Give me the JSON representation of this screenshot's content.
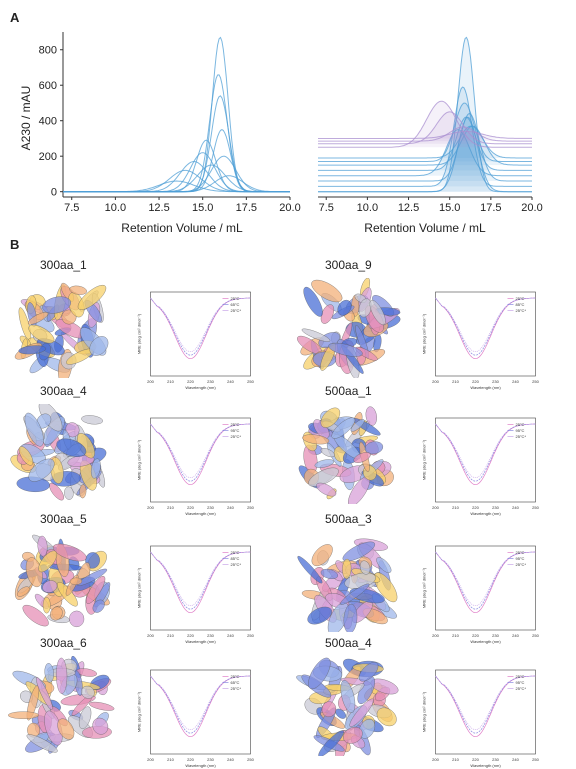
{
  "panel_a": {
    "letter": "A",
    "ylabel": "A230 / mAU",
    "xlabel_left": "Retention Volume / mL",
    "xlabel_right": "Retention Volume / mL"
  },
  "panel_b": {
    "letter": "B"
  },
  "chart_data": [
    {
      "type": "line",
      "title": "",
      "xlabel": "Retention Volume / mL",
      "ylabel": "A230 / mAU",
      "xlim": [
        7,
        20
      ],
      "ylim": [
        -30,
        900
      ],
      "xticks": [
        "7.5",
        "10.0",
        "12.5",
        "15.0",
        "17.5",
        "20.0"
      ],
      "yticks": [
        "0",
        "200",
        "400",
        "600",
        "800"
      ],
      "grid": false,
      "series": [
        {
          "peak_x": 16.0,
          "peak_y": 870,
          "width": 0.45
        },
        {
          "peak_x": 15.9,
          "peak_y": 660,
          "width": 0.5
        },
        {
          "peak_x": 16.0,
          "peak_y": 540,
          "width": 0.5
        },
        {
          "peak_x": 16.1,
          "peak_y": 350,
          "width": 0.5
        },
        {
          "peak_x": 15.2,
          "peak_y": 290,
          "width": 0.55
        },
        {
          "peak_x": 15.0,
          "peak_y": 220,
          "width": 0.7
        },
        {
          "peak_x": 14.5,
          "peak_y": 170,
          "width": 0.8
        },
        {
          "peak_x": 16.2,
          "peak_y": 200,
          "width": 0.7
        },
        {
          "peak_x": 14.0,
          "peak_y": 120,
          "width": 0.9
        },
        {
          "peak_x": 15.5,
          "peak_y": 150,
          "width": 0.8
        },
        {
          "peak_x": 16.5,
          "peak_y": 90,
          "width": 0.8
        },
        {
          "peak_x": 13.5,
          "peak_y": 60,
          "width": 1.0
        }
      ]
    },
    {
      "type": "line",
      "title": "",
      "xlabel": "Retention Volume / mL",
      "xlim": [
        7,
        20
      ],
      "xticks": [
        "7.5",
        "10.0",
        "12.5",
        "15.0",
        "17.5",
        "20.0"
      ],
      "grid": false,
      "note_layout": "stacked offset traces",
      "series": [
        {
          "offset": 0,
          "peak_x": 16.0,
          "peak_y": 870,
          "width": 0.5
        },
        {
          "offset": 0,
          "peak_x": 16.1,
          "peak_y": 420,
          "width": 0.6
        },
        {
          "offset": 30,
          "peak_x": 15.8,
          "peak_y": 560,
          "width": 0.55
        },
        {
          "offset": 60,
          "peak_x": 16.2,
          "peak_y": 380,
          "width": 0.6
        },
        {
          "offset": 90,
          "peak_x": 15.5,
          "peak_y": 260,
          "width": 0.7
        },
        {
          "offset": 120,
          "peak_x": 16.0,
          "peak_y": 300,
          "width": 0.6
        },
        {
          "offset": 150,
          "peak_x": 16.4,
          "peak_y": 220,
          "width": 0.7
        },
        {
          "offset": 170,
          "peak_x": 15.9,
          "peak_y": 330,
          "width": 0.6
        },
        {
          "offset": 190,
          "peak_x": 16.3,
          "peak_y": 180,
          "width": 0.7
        },
        {
          "offset": 250,
          "peak_x": 14.5,
          "peak_y": 260,
          "width": 0.9,
          "purple": true
        },
        {
          "offset": 270,
          "peak_x": 15.0,
          "peak_y": 180,
          "width": 0.8,
          "purple": true
        },
        {
          "offset": 285,
          "peak_x": 15.8,
          "peak_y": 80,
          "width": 0.8,
          "purple": true
        },
        {
          "offset": 300,
          "peak_x": 16.0,
          "peak_y": 40,
          "width": 1.0,
          "purple": true
        }
      ]
    }
  ],
  "proteins": [
    {
      "name": "300aa_1",
      "legend": [
        "25°C",
        "65°C",
        "25°C*"
      ],
      "colors": [
        "#e07fc8",
        "#8a8ae0",
        "#c9a6e8"
      ]
    },
    {
      "name": "300aa_9",
      "legend": [
        "25°C",
        "85°C",
        "25°C*"
      ],
      "colors": [
        "#e07fc8",
        "#8a8ae0",
        "#c9a6e8"
      ]
    },
    {
      "name": "300aa_4",
      "legend": [
        "25°C",
        "95°C",
        "25°C*"
      ],
      "colors": [
        "#e07fc8",
        "#8a8ae0",
        "#c9a6e8"
      ]
    },
    {
      "name": "500aa_1",
      "legend": [
        "25°C",
        "95°C",
        "25°C*"
      ],
      "colors": [
        "#e07fc8",
        "#8a8ae0",
        "#c9a6e8"
      ]
    },
    {
      "name": "300aa_5",
      "legend": [
        "25°C",
        "85°C",
        "25°C*"
      ],
      "colors": [
        "#e07fc8",
        "#8a8ae0",
        "#c9a6e8"
      ]
    },
    {
      "name": "500aa_3",
      "legend": [
        "25°C",
        "95°C",
        "25°C*"
      ],
      "colors": [
        "#e07fc8",
        "#8a8ae0",
        "#c9a6e8"
      ]
    },
    {
      "name": "300aa_6",
      "legend": [
        "25°C",
        "65°C",
        "25°C*"
      ],
      "colors": [
        "#e07fc8",
        "#8a8ae0",
        "#c9a6e8"
      ]
    },
    {
      "name": "500aa_4",
      "legend": [
        "25°C",
        "95°C",
        "25°C*"
      ],
      "colors": [
        "#e07fc8",
        "#8a8ae0",
        "#c9a6e8"
      ]
    }
  ],
  "cd_axes": {
    "xlabel": "Wavelength (nm)",
    "ylabel": "MRE (deg cm² dmol⁻¹)",
    "xticks": [
      "200",
      "210",
      "220",
      "230",
      "240",
      "250"
    ]
  },
  "colors": {
    "trace_blue": "#4f9fd6",
    "trace_purple": "#a98fd0",
    "axis": "#333333"
  }
}
